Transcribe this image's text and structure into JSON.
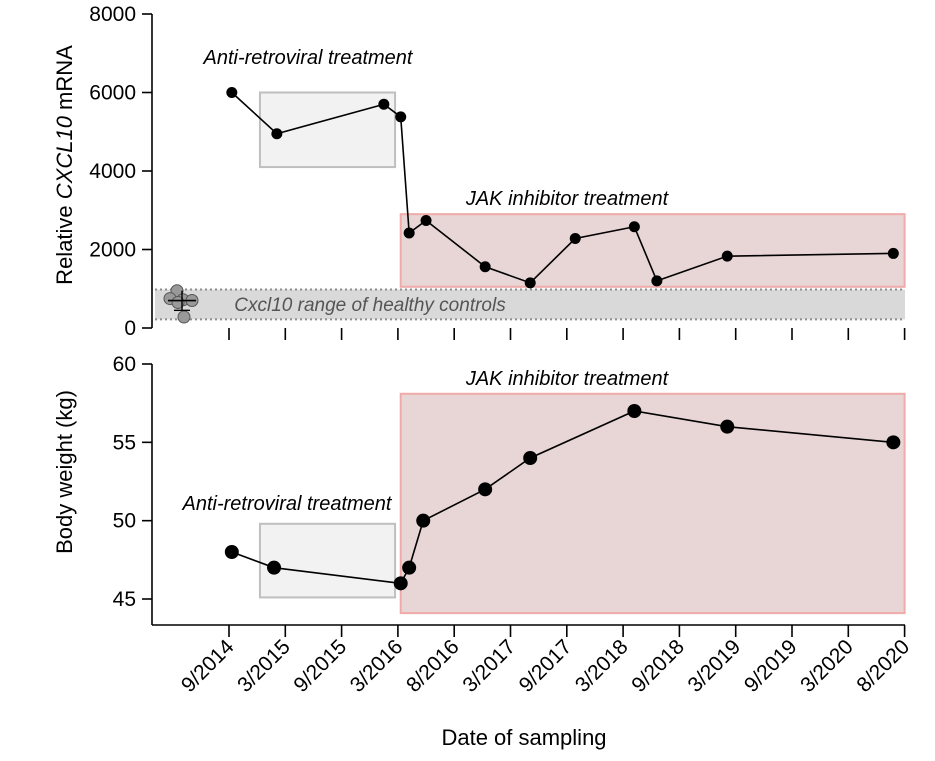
{
  "chart_data": [
    {
      "type": "line",
      "panel": "top",
      "ylabel_prefix": "Relative ",
      "ylabel_gene": "CXCL10",
      "ylabel_suffix": " mRNA",
      "ylim": [
        0,
        8000
      ],
      "yticks": [
        0,
        2000,
        4000,
        6000,
        8000
      ],
      "x_index_range": [
        0,
        12
      ],
      "series": [
        {
          "name": "CXCL10 mRNA",
          "x": [
            0.05,
            0.85,
            2.75,
            3.05,
            3.2,
            3.5,
            4.55,
            5.35,
            6.15,
            7.2,
            7.6,
            8.85,
            11.8
          ],
          "values": [
            6000,
            4950,
            5700,
            5380,
            2420,
            2740,
            1560,
            1150,
            2280,
            2580,
            1200,
            1830,
            1900
          ]
        }
      ],
      "healthy_controls": {
        "label": "Cxcl10 range of healthy controls",
        "range": [
          220,
          980
        ],
        "points": [
          950,
          750,
          720,
          700,
          650,
          280
        ]
      },
      "annotations": [
        {
          "text": "Anti-retroviral treatment",
          "x_range": [
            0.55,
            2.95
          ],
          "y_range": [
            4100,
            6000
          ]
        },
        {
          "text": "JAK inhibitor treatment",
          "x_range": [
            3.05,
            12.0
          ],
          "y_range": [
            1050,
            2900
          ]
        }
      ]
    },
    {
      "type": "line",
      "panel": "bottom",
      "ylabel": "Body weight (kg)",
      "ylim": [
        43.5,
        60
      ],
      "yticks": [
        45,
        50,
        55,
        60
      ],
      "series": [
        {
          "name": "Body weight",
          "x": [
            0.05,
            0.8,
            3.05,
            3.2,
            3.45,
            4.55,
            5.35,
            7.2,
            8.85,
            11.8
          ],
          "values": [
            48,
            47,
            46,
            47,
            50,
            52,
            54,
            57,
            56,
            55
          ]
        }
      ],
      "annotations": [
        {
          "text": "Anti-retroviral treatment",
          "x_range": [
            0.55,
            2.95
          ],
          "y_range": [
            45.1,
            49.8
          ]
        },
        {
          "text": "JAK inhibitor treatment",
          "x_range": [
            3.05,
            12.0
          ],
          "y_range": [
            44.1,
            58.1
          ]
        }
      ]
    }
  ],
  "x_axis": {
    "label": "Date of sampling",
    "tick_labels": [
      "9/2014",
      "3/2015",
      "9/2015",
      "3/2016",
      "8/2016",
      "3/2017",
      "9/2017",
      "3/2018",
      "9/2018",
      "3/2019",
      "9/2019",
      "3/2020",
      "8/2020"
    ]
  },
  "colors": {
    "arv_fill": "#f2f2f2",
    "arv_stroke": "#bfbfbf",
    "jak_fill": "#e8d5d5",
    "jak_stroke": "#f0aaaa",
    "healthy_band": "#d9d9d9",
    "healthy_dots": "#999999",
    "point": "#000000"
  }
}
